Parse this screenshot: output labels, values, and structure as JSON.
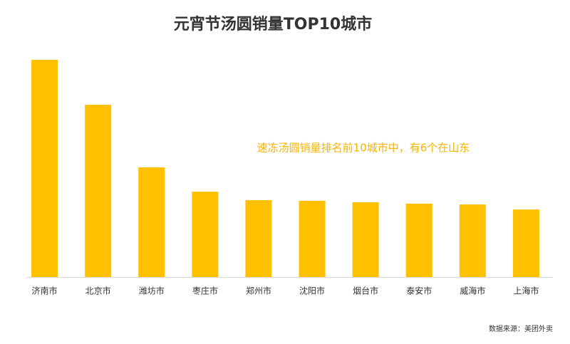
{
  "chart_data": {
    "type": "bar",
    "title": "元宵节汤圆销量TOP10城市",
    "annotation": "速冻汤圆销量排名前10城市中，有6个在山东",
    "source": "数据来源：美团外卖",
    "categories": [
      "济南市",
      "北京市",
      "潍坊市",
      "枣庄市",
      "郑州市",
      "沈阳市",
      "烟台市",
      "泰安市",
      "威海市",
      "上海市"
    ],
    "values": [
      100,
      79.3,
      50.5,
      39.3,
      35.4,
      35.1,
      34.4,
      33.8,
      33.4,
      31.1
    ],
    "color": "#ffc000",
    "ylim": [
      0,
      100
    ]
  }
}
